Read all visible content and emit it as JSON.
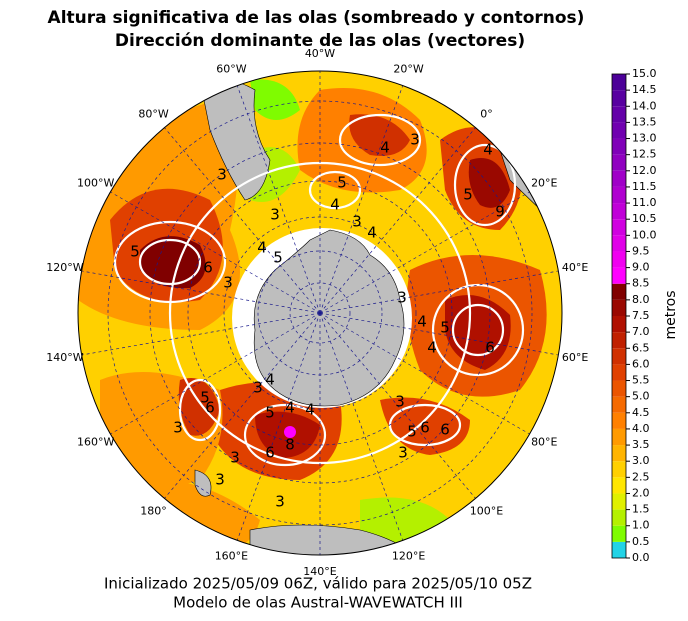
{
  "title": [
    "Altura significativa de las olas (sombreado y contornos)",
    "Dirección dominante de las olas (vectores)"
  ],
  "map": {
    "longitude_labels": [
      "40°W",
      "20°W",
      "0°",
      "20°E",
      "40°E",
      "60°E",
      "80°E",
      "100°E",
      "120°E",
      "140°E",
      "160°E",
      "180°",
      "160°W",
      "140°W",
      "120°W",
      "100°W",
      "80°W",
      "60°W"
    ],
    "contour_labels": [
      "5",
      "6",
      "3",
      "3",
      "4",
      "5",
      "3",
      "5",
      "4",
      "3",
      "4",
      "4",
      "3",
      "4",
      "5",
      "9",
      "3",
      "4",
      "5",
      "6",
      "4",
      "3",
      "6",
      "6",
      "3",
      "5",
      "4",
      "3",
      "5",
      "4",
      "4",
      "6",
      "8",
      "3",
      "3",
      "3",
      "3",
      "5",
      "6"
    ]
  },
  "colorbar": {
    "label": "metros",
    "ticks": [
      {
        "value": 0,
        "label": "0.0"
      },
      {
        "value": 0.5,
        "label": "0.5"
      },
      {
        "value": 1,
        "label": "1.0"
      },
      {
        "value": 1.5,
        "label": "1.5"
      },
      {
        "value": 2,
        "label": "2.0"
      },
      {
        "value": 2.5,
        "label": "2.5"
      },
      {
        "value": 3,
        "label": "3.0"
      },
      {
        "value": 3.5,
        "label": "3.5"
      },
      {
        "value": 4,
        "label": "4.0"
      },
      {
        "value": 4.5,
        "label": "4.5"
      },
      {
        "value": 5,
        "label": "5.0"
      },
      {
        "value": 5.5,
        "label": "5.5"
      },
      {
        "value": 6,
        "label": "6.0"
      },
      {
        "value": 6.5,
        "label": "6.5"
      },
      {
        "value": 7,
        "label": "7.0"
      },
      {
        "value": 7.5,
        "label": "7.5"
      },
      {
        "value": 8,
        "label": "8.0"
      },
      {
        "value": 8.5,
        "label": "8.5"
      },
      {
        "value": 9,
        "label": "9.0"
      },
      {
        "value": 9.5,
        "label": "9.5"
      },
      {
        "value": 10,
        "label": "10.0"
      },
      {
        "value": 10.5,
        "label": "10.5"
      },
      {
        "value": 11,
        "label": "11.0"
      },
      {
        "value": 11.5,
        "label": "11.5"
      },
      {
        "value": 12,
        "label": "12.0"
      },
      {
        "value": 12.5,
        "label": "12.5"
      },
      {
        "value": 13,
        "label": "13.0"
      },
      {
        "value": 13.5,
        "label": "13.5"
      },
      {
        "value": 14,
        "label": "14.0"
      },
      {
        "value": 14.5,
        "label": "14.5"
      },
      {
        "value": 15,
        "label": "15.0"
      }
    ],
    "colors": [
      "#22d3e6",
      "#7ffc00",
      "#b4f000",
      "#e0f000",
      "#ffe600",
      "#ffd000",
      "#ffb400",
      "#ff9a00",
      "#ff8000",
      "#f56a00",
      "#eb5500",
      "#e04000",
      "#d03000",
      "#c02000",
      "#b01000",
      "#9a0800",
      "#800000",
      "#ff00ff",
      "#f000f0",
      "#e000e8",
      "#d000e0",
      "#c000d8",
      "#b000d0",
      "#a000c8",
      "#9000c0",
      "#8000b8",
      "#7000b0",
      "#6400a8",
      "#5800a0",
      "#4c0098"
    ]
  },
  "footer": [
    "Inicializado 2025/05/09 06Z, válido para 2025/05/10 05Z",
    "Modelo de olas Austral-WAVEWATCH III"
  ]
}
